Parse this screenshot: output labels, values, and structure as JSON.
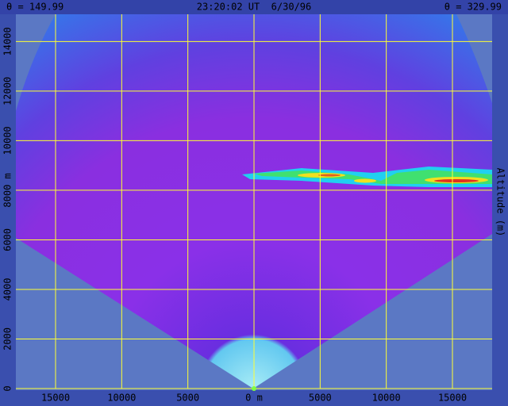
{
  "chart_data": {
    "type": "rhi",
    "header_left": "θ = 149.99",
    "header_center": "23:20:02 UT  6/30/96",
    "header_right": "θ = 329.99",
    "y_label": "Altitude (m)",
    "xlim": [
      -18000,
      18000
    ],
    "ylim": [
      0,
      15100
    ],
    "xticks": [
      {
        "value": -15000,
        "label": "15000"
      },
      {
        "value": -10000,
        "label": "10000"
      },
      {
        "value": -5000,
        "label": "5000"
      },
      {
        "value": 0,
        "label": "0 m"
      },
      5000,
      10000,
      15000
    ],
    "yticks": [
      0,
      2000,
      4000,
      6000,
      {
        "value": 8000,
        "label": "8000 m"
      },
      10000,
      12000,
      14000
    ],
    "grid": true,
    "grid_color": "#ffff33"
  }
}
